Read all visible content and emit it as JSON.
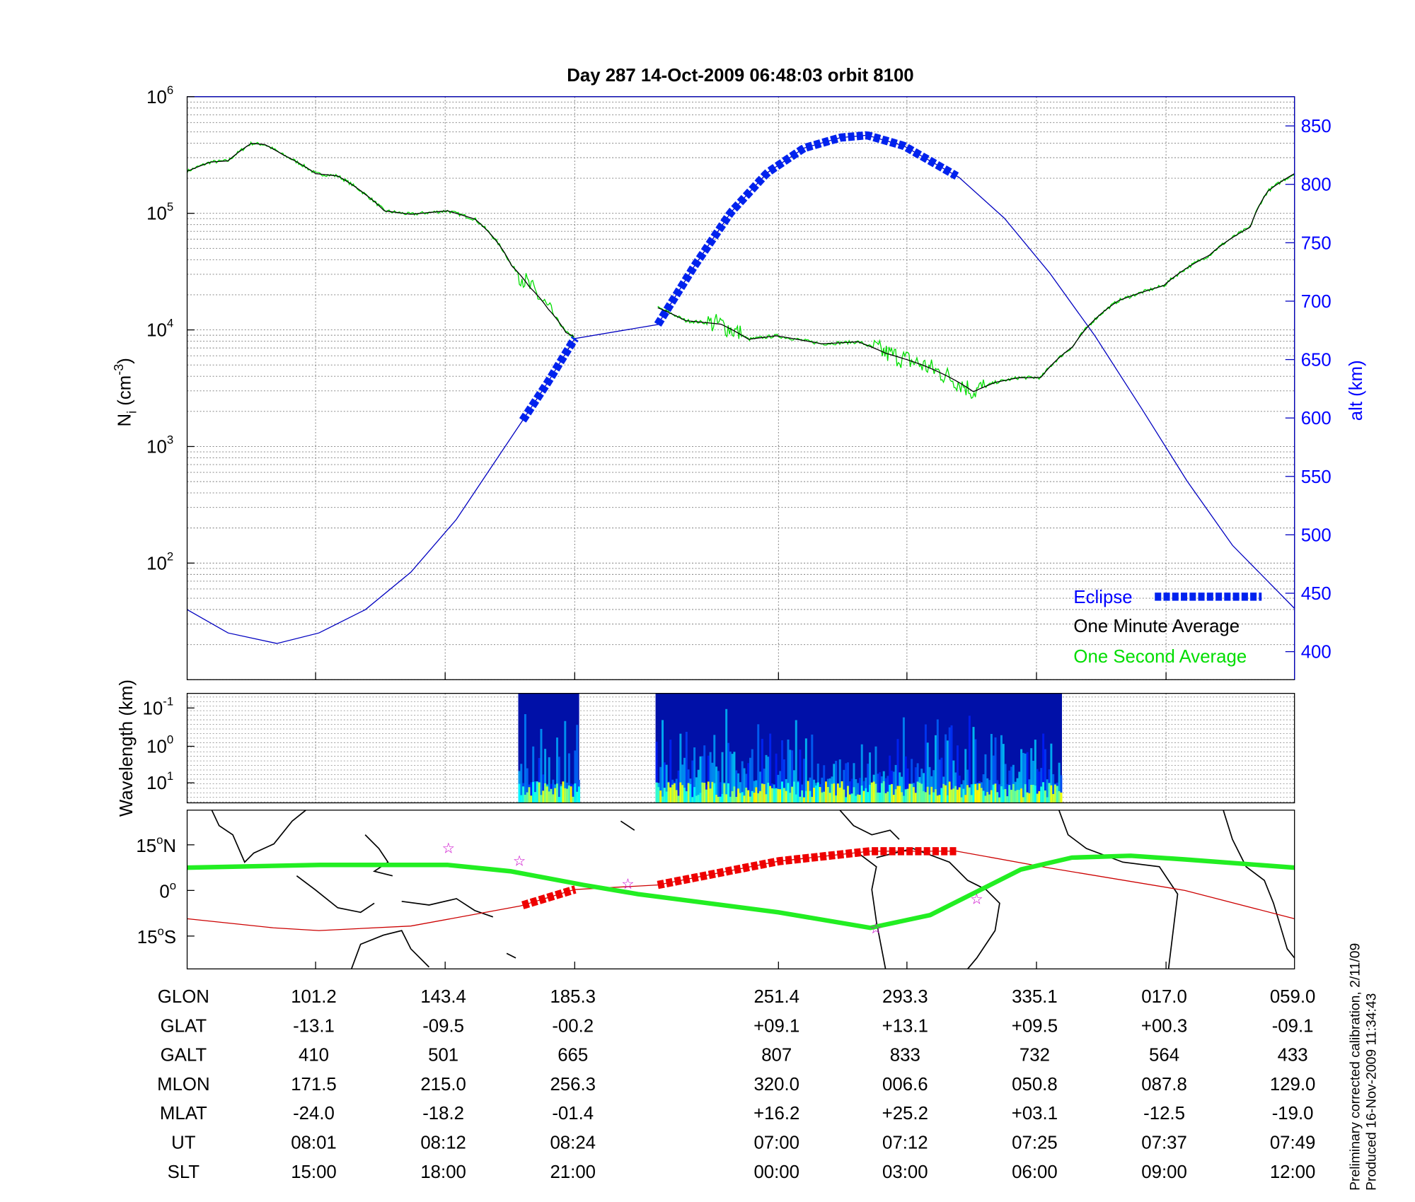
{
  "chart_data": [
    {
      "type": "line",
      "title": "Day 287  14-Oct-2009 06:48:03   orbit 8100",
      "ylabel": "N",
      "ylabel_sub": "i",
      "ylabel_unit": " (cm",
      "ylabel_exp": "-3",
      "ylabel_close": ")",
      "y2label": "alt (km)",
      "yscale": "log",
      "ylim": [
        10,
        1000000
      ],
      "y_ticks": [
        {
          "base": "10",
          "exp": "2",
          "v": 100
        },
        {
          "base": "10",
          "exp": "3",
          "v": 1000
        },
        {
          "base": "10",
          "exp": "4",
          "v": 10000
        },
        {
          "base": "10",
          "exp": "5",
          "v": 100000
        },
        {
          "base": "10",
          "exp": "6",
          "v": 1000000
        }
      ],
      "y2lim": [
        376,
        875
      ],
      "y2_ticks": [
        "400",
        "450",
        "500",
        "550",
        "600",
        "650",
        "700",
        "750",
        "800",
        "850"
      ],
      "xlim": [
        0,
        100
      ],
      "x_gridlines": [
        11.6,
        23.3,
        35.0,
        53.4,
        65.0,
        76.7,
        88.4
      ],
      "grid": true,
      "legend_placement": "bottom-right",
      "legend": {
        "eclipse": "Eclipse",
        "minute": "One Minute Average",
        "second": "One Second Average"
      },
      "colors": {
        "altitude": "#0000c0",
        "eclipse": "#0022ee",
        "minute": "#000000",
        "second": "#00dd00"
      },
      "series": [
        {
          "name": "alt (km)",
          "axis": "right",
          "x": [
            0,
            3.7,
            8.1,
            11.9,
            16.1,
            20.2,
            24.3,
            27.4,
            30.3,
            32.6,
            35.0,
            42.5,
            45.8,
            49.1,
            52.4,
            55.7,
            59.0,
            61.4,
            64.7,
            69.7,
            73.8,
            77.9,
            82.0,
            86.2,
            90.3,
            94.4,
            100
          ],
          "y": [
            436,
            416,
            407,
            416,
            436,
            468,
            513,
            557,
            598,
            631,
            668,
            680,
            730,
            776,
            810,
            831,
            840,
            842,
            833,
            806,
            771,
            724,
            670,
            608,
            546,
            491,
            437
          ]
        },
        {
          "name": "One Minute Average",
          "axis": "left",
          "segments": [
            {
              "x": [
                0,
                2.1,
                3.7,
                5.8,
                7.0,
                8.7,
                11.6,
                13.6,
                16.1,
                17.8,
                20.2,
                23.5,
                26.0,
                27.6,
                29.3,
                30.9,
                32.6,
                34.2,
                35.0
              ],
              "y": [
                229000,
                275000,
                282000,
                398000,
                389000,
                316000,
                219000,
                209000,
                145000,
                105000,
                98000,
                105000,
                89000,
                63000,
                35500,
                23400,
                15100,
                9500,
                8700
              ]
            },
            {
              "x": [
                42.5,
                45.0,
                48.2,
                50.7,
                53.2,
                57.3,
                60.6,
                63.1,
                66.4,
                68.9,
                71.0,
                73.0,
                75.1,
                77.1,
                80.0,
                84.1,
                88.2,
                92.3,
                96.0,
                97.6,
                100
              ],
              "y": [
                15500,
                12000,
                11200,
                8300,
                8900,
                7600,
                7900,
                6300,
                5000,
                3900,
                2950,
                3550,
                3890,
                3900,
                7200,
                17800,
                24000,
                43600,
                75900,
                155000,
                219000
              ]
            }
          ]
        },
        {
          "name": "One Second Average",
          "axis": "left",
          "noisy_ranges": [
            [
              30,
              33
            ],
            [
              47,
              50
            ],
            [
              62,
              72
            ]
          ]
        }
      ],
      "eclipse_ranges": [
        [
          30.3,
          35.2
        ],
        [
          42.5,
          69.7
        ]
      ]
    },
    {
      "type": "heatmap",
      "ylabel": "Wavelength (km)",
      "y_ticks": [
        {
          "base": "10",
          "exp": "-1"
        },
        {
          "base": "10",
          "exp": "0"
        },
        {
          "base": "10",
          "exp": "1"
        }
      ],
      "data_ranges": [
        [
          29.9,
          35.4
        ],
        [
          42.3,
          79.0
        ]
      ],
      "colormap": "jet"
    },
    {
      "type": "line",
      "subtype": "map",
      "lat_ticks": [
        {
          "label": "15",
          "deg": "o",
          "hemi": "N",
          "v": 15
        },
        {
          "label": "0",
          "deg": "o",
          "hemi": "",
          "v": 0
        },
        {
          "label": "15",
          "deg": "o",
          "hemi": "S",
          "v": -15
        }
      ],
      "ylim": [
        -25.8,
        26.4
      ],
      "series": [
        {
          "name": "magnetic equator track",
          "color": "#22ee22",
          "x": [
            0,
            12,
            23.5,
            29.2,
            35.8,
            40.7,
            53.4,
            61.7,
            67.1,
            75.3,
            79.9,
            85.2,
            90.1,
            100
          ],
          "y": [
            7.5,
            8.4,
            8.4,
            6.3,
            1.8,
            -1.2,
            -7.2,
            -12.3,
            -8.1,
            6.9,
            10.8,
            11.4,
            10.2,
            7.5
          ]
        },
        {
          "name": "orbit track",
          "color": "#cc0000",
          "x": [
            0,
            7.8,
            11.9,
            20.2,
            30.1,
            35.0,
            42.5,
            53.4,
            61.7,
            69.5,
            77.7,
            90.1,
            100
          ],
          "y": [
            -9.3,
            -12.3,
            -13.2,
            -11.7,
            -5.1,
            0.3,
            1.8,
            9.6,
            12.9,
            12.9,
            7.5,
            0,
            -9.3
          ]
        }
      ],
      "eclipse_ranges": [
        [
          30.3,
          35.2
        ],
        [
          42.5,
          69.7
        ]
      ],
      "stars": [
        {
          "x": 23.6,
          "y": 14.1
        },
        {
          "x": 30.0,
          "y": 9.9
        },
        {
          "x": 39.8,
          "y": 2.4
        },
        {
          "x": 71.3,
          "y": -2.7
        },
        {
          "x": 62.2,
          "y": -12.3
        }
      ]
    }
  ],
  "table": {
    "rows": [
      {
        "label": "GLON",
        "values": [
          "101.2",
          "143.4",
          "185.3",
          "251.4",
          "293.3",
          "335.1",
          "017.0",
          "059.0"
        ]
      },
      {
        "label": "GLAT",
        "values": [
          "-13.1",
          "-09.5",
          "-00.2",
          "+09.1",
          "+13.1",
          "+09.5",
          "+00.3",
          "-09.1"
        ]
      },
      {
        "label": "GALT",
        "values": [
          "410",
          "501",
          "665",
          "807",
          "833",
          "732",
          "564",
          "433"
        ]
      },
      {
        "label": "MLON",
        "values": [
          "171.5",
          "215.0",
          "256.3",
          "320.0",
          "006.6",
          "050.8",
          "087.8",
          "129.0"
        ]
      },
      {
        "label": "MLAT",
        "values": [
          "-24.0",
          "-18.2",
          "-01.4",
          "+16.2",
          "+25.2",
          "+03.1",
          "-12.5",
          "-19.0"
        ]
      },
      {
        "label": "UT",
        "values": [
          "08:01",
          "08:12",
          "08:24",
          "07:00",
          "07:12",
          "07:25",
          "07:37",
          "07:49"
        ]
      },
      {
        "label": "SLT",
        "values": [
          "15:00",
          "18:00",
          "21:00",
          "00:00",
          "03:00",
          "06:00",
          "09:00",
          "12:00"
        ]
      }
    ]
  },
  "footer": {
    "calibration": "Preliminary corrected calibration, 2/11/09",
    "produced": "Produced 16-Nov-2009 11:34:43"
  }
}
